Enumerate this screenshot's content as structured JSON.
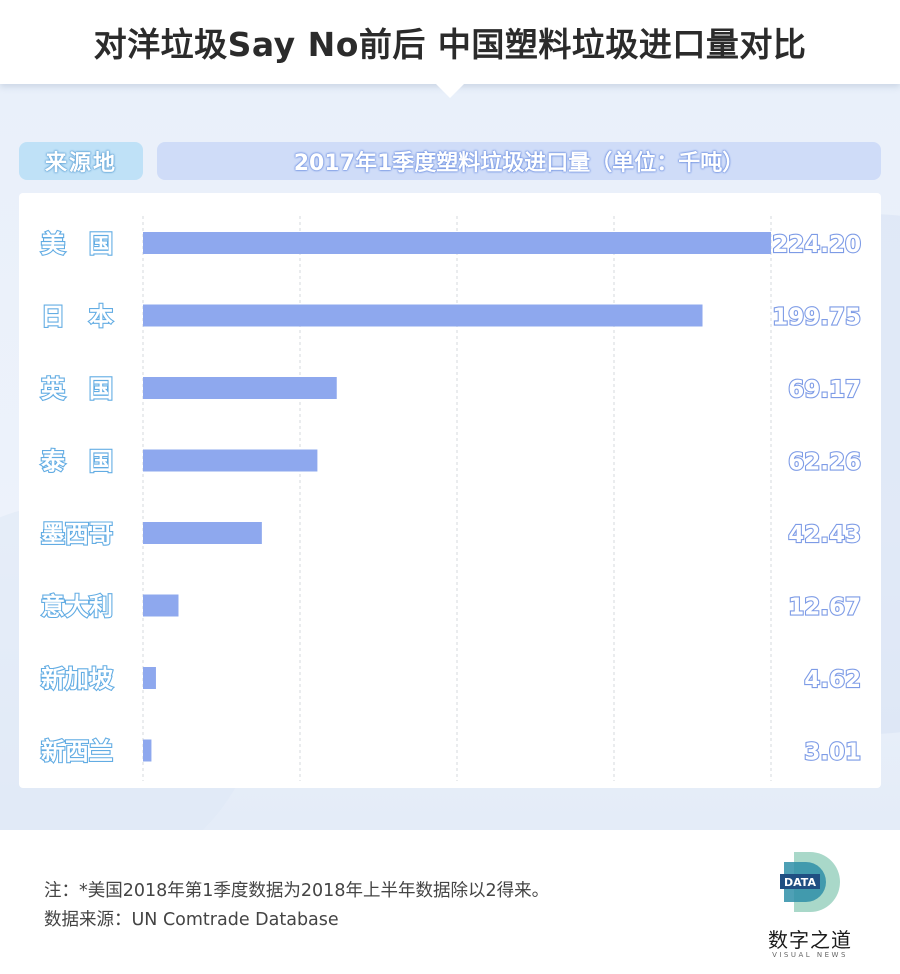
{
  "header": {
    "title": "对洋垃圾Say No前后  中国塑料垃圾进口量对比"
  },
  "table_header": {
    "left": "来源地",
    "right": "2017年1季度塑料垃圾进口量（单位：千吨）"
  },
  "chart_data": {
    "type": "bar",
    "orientation": "horizontal",
    "categories": [
      "美　国",
      "日　本",
      "英　国",
      "泰　国",
      "墨西哥",
      "意大利",
      "新加坡",
      "新西兰"
    ],
    "values": [
      224.2,
      199.75,
      69.17,
      62.26,
      42.43,
      12.67,
      4.62,
      3.01
    ],
    "value_labels": [
      "224.20",
      "199.75",
      "69.17",
      "62.26",
      "42.43",
      "12.67",
      "4.62",
      "3.01"
    ],
    "xlim": [
      0,
      224.2
    ],
    "grid": true,
    "bar_color": "#8ea8ee",
    "title": "",
    "xlabel": "",
    "ylabel": ""
  },
  "footer": {
    "note": "注：*美国2018年第1季度数据为2018年上半年数据除以2得来。",
    "source": "数据来源：UN Comtrade Database"
  },
  "logo": {
    "badge": "DATA",
    "name": "数字之道",
    "sub": "VISUAL NEWS",
    "colors": [
      "#1f4f82",
      "#2f8fa8",
      "#a9d8c9"
    ]
  }
}
